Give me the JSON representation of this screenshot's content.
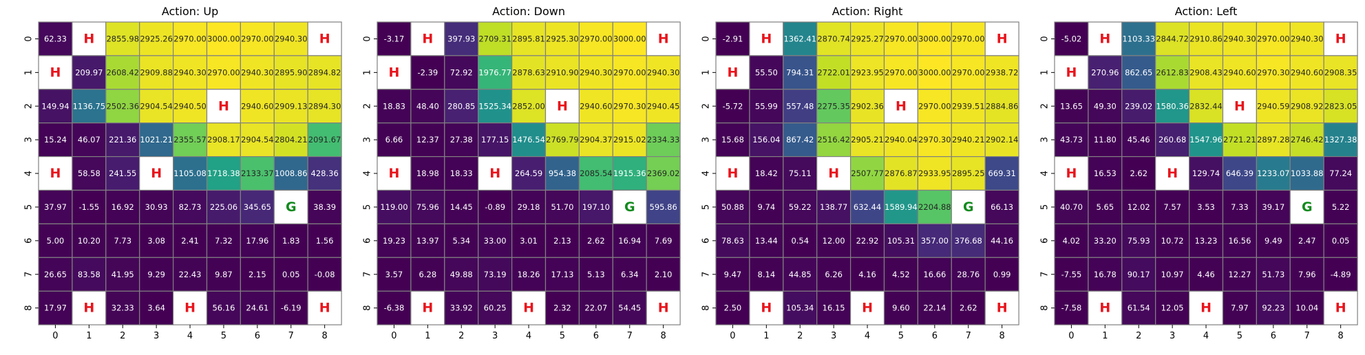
{
  "chart_data": [
    {
      "type": "heatmap",
      "title": "Action: Up",
      "x_ticks": [
        "0",
        "1",
        "2",
        "3",
        "4",
        "5",
        "6",
        "7",
        "8"
      ],
      "y_ticks": [
        "0",
        "1",
        "2",
        "3",
        "4",
        "5",
        "6",
        "7",
        "8"
      ],
      "colormap": "viridis",
      "value_range": [
        0,
        3000
      ],
      "cells": [
        [
          "62.33",
          "H",
          "2855.98",
          "2925.26",
          "2970.00",
          "3000.00",
          "2970.00",
          "2940.30",
          "H"
        ],
        [
          "H",
          "209.97",
          "2608.42",
          "2909.88",
          "2940.30",
          "2970.00",
          "2940.30",
          "2895.90",
          "2894.82"
        ],
        [
          "149.94",
          "1136.75",
          "2502.36",
          "2904.54",
          "2940.50",
          "H",
          "2940.60",
          "2909.13",
          "2894.30"
        ],
        [
          "15.24",
          "46.07",
          "221.36",
          "1021.21",
          "2355.57",
          "2908.17",
          "2904.54",
          "2804.21",
          "2091.67"
        ],
        [
          "H",
          "58.58",
          "241.55",
          "H",
          "1105.08",
          "1718.38",
          "2133.37",
          "1008.86",
          "428.36"
        ],
        [
          "37.97",
          "-1.55",
          "16.92",
          "30.93",
          "82.73",
          "225.06",
          "345.65",
          "G",
          "38.39"
        ],
        [
          "5.00",
          "10.20",
          "7.73",
          "3.08",
          "2.41",
          "7.32",
          "17.96",
          "1.83",
          "1.56"
        ],
        [
          "26.65",
          "83.58",
          "41.95",
          "9.29",
          "22.43",
          "9.87",
          "2.15",
          "0.05",
          "-0.08"
        ],
        [
          "17.97",
          "H",
          "32.33",
          "3.64",
          "H",
          "56.16",
          "24.61",
          "-6.19",
          "H"
        ]
      ]
    },
    {
      "type": "heatmap",
      "title": "Action: Down",
      "x_ticks": [
        "0",
        "1",
        "2",
        "3",
        "4",
        "5",
        "6",
        "7",
        "8"
      ],
      "y_ticks": [
        "0",
        "1",
        "2",
        "3",
        "4",
        "5",
        "6",
        "7",
        "8"
      ],
      "colormap": "viridis",
      "value_range": [
        0,
        3000
      ],
      "cells": [
        [
          "-3.17",
          "H",
          "397.93",
          "2709.31",
          "2895.81",
          "2925.30",
          "2970.00",
          "3000.00",
          "H"
        ],
        [
          "H",
          "-2.39",
          "72.92",
          "1976.77",
          "2878.63",
          "2910.90",
          "2940.30",
          "2970.00",
          "2940.30"
        ],
        [
          "18.83",
          "48.40",
          "280.85",
          "1525.34",
          "2852.00",
          "H",
          "2940.60",
          "2970.30",
          "2940.45"
        ],
        [
          "6.66",
          "12.37",
          "27.38",
          "177.15",
          "1476.54",
          "2769.79",
          "2904.37",
          "2915.02",
          "2334.33"
        ],
        [
          "H",
          "18.98",
          "18.33",
          "H",
          "264.59",
          "954.38",
          "2085.54",
          "1915.36",
          "2369.02"
        ],
        [
          "119.00",
          "75.96",
          "14.45",
          "-0.89",
          "29.18",
          "51.70",
          "197.10",
          "G",
          "595.86"
        ],
        [
          "19.23",
          "13.97",
          "5.34",
          "33.00",
          "3.01",
          "2.13",
          "2.62",
          "16.94",
          "7.69"
        ],
        [
          "3.57",
          "6.28",
          "49.88",
          "73.19",
          "18.26",
          "17.13",
          "5.13",
          "6.34",
          "2.10"
        ],
        [
          "-6.38",
          "H",
          "33.92",
          "60.25",
          "H",
          "2.32",
          "22.07",
          "54.45",
          "H"
        ]
      ]
    },
    {
      "type": "heatmap",
      "title": "Action: Right",
      "x_ticks": [
        "0",
        "1",
        "2",
        "3",
        "4",
        "5",
        "6",
        "7",
        "8"
      ],
      "y_ticks": [
        "0",
        "1",
        "2",
        "3",
        "4",
        "5",
        "6",
        "7",
        "8"
      ],
      "colormap": "viridis",
      "value_range": [
        0,
        3000
      ],
      "cells": [
        [
          "-2.91",
          "H",
          "1362.41",
          "2870.74",
          "2925.27",
          "2970.00",
          "3000.00",
          "2970.00",
          "H"
        ],
        [
          "H",
          "55.50",
          "794.31",
          "2722.01",
          "2923.95",
          "2970.00",
          "3000.00",
          "2970.00",
          "2938.72"
        ],
        [
          "-5.72",
          "55.99",
          "557.48",
          "2275.35",
          "2902.36",
          "H",
          "2970.00",
          "2939.51",
          "2884.86"
        ],
        [
          "15.68",
          "156.04",
          "867.42",
          "2516.42",
          "2905.21",
          "2940.04",
          "2970.30",
          "2940.21",
          "2902.14"
        ],
        [
          "H",
          "18.42",
          "75.11",
          "H",
          "2507.77",
          "2876.87",
          "2933.95",
          "2895.25",
          "669.31"
        ],
        [
          "50.88",
          "9.74",
          "59.22",
          "138.77",
          "632.44",
          "1589.94",
          "2204.88",
          "G",
          "66.13"
        ],
        [
          "78.63",
          "13.44",
          "0.54",
          "12.00",
          "22.92",
          "105.31",
          "357.00",
          "376.68",
          "44.16"
        ],
        [
          "9.47",
          "8.14",
          "44.85",
          "6.26",
          "4.16",
          "4.52",
          "16.66",
          "28.76",
          "0.99"
        ],
        [
          "2.50",
          "H",
          "105.34",
          "16.15",
          "H",
          "9.60",
          "22.14",
          "2.62",
          "H"
        ]
      ]
    },
    {
      "type": "heatmap",
      "title": "Action: Left",
      "x_ticks": [
        "0",
        "1",
        "2",
        "3",
        "4",
        "5",
        "6",
        "7",
        "8"
      ],
      "y_ticks": [
        "0",
        "1",
        "2",
        "3",
        "4",
        "5",
        "6",
        "7",
        "8"
      ],
      "colormap": "viridis",
      "value_range": [
        0,
        3000
      ],
      "cells": [
        [
          "-5.02",
          "H",
          "1103.33",
          "2844.72",
          "2910.86",
          "2940.30",
          "2970.00",
          "2940.30",
          "H"
        ],
        [
          "H",
          "270.96",
          "862.65",
          "2612.83",
          "2908.43",
          "2940.60",
          "2970.30",
          "2940.60",
          "2908.35"
        ],
        [
          "13.65",
          "49.30",
          "239.02",
          "1580.36",
          "2832.44",
          "H",
          "2940.59",
          "2908.92",
          "2823.05"
        ],
        [
          "43.73",
          "11.80",
          "45.46",
          "260.68",
          "1547.96",
          "2721.21",
          "2897.28",
          "2746.42",
          "1327.38"
        ],
        [
          "H",
          "16.53",
          "2.62",
          "H",
          "129.74",
          "646.39",
          "1233.07",
          "1033.88",
          "77.24"
        ],
        [
          "40.70",
          "5.65",
          "12.02",
          "7.57",
          "3.53",
          "7.33",
          "39.17",
          "G",
          "5.22"
        ],
        [
          "4.02",
          "33.20",
          "75.93",
          "10.72",
          "13.23",
          "16.56",
          "9.49",
          "2.47",
          "0.05"
        ],
        [
          "-7.55",
          "16.78",
          "90.17",
          "10.97",
          "4.46",
          "12.27",
          "51.73",
          "7.96",
          "-4.89"
        ],
        [
          "-7.58",
          "H",
          "61.54",
          "12.05",
          "H",
          "7.97",
          "92.23",
          "10.04",
          "H"
        ]
      ]
    }
  ],
  "colors": {
    "hole_text": "#e8141c",
    "goal_text": "#138a1e",
    "special_cell": "#ffffff",
    "grid_line": "#808080"
  }
}
